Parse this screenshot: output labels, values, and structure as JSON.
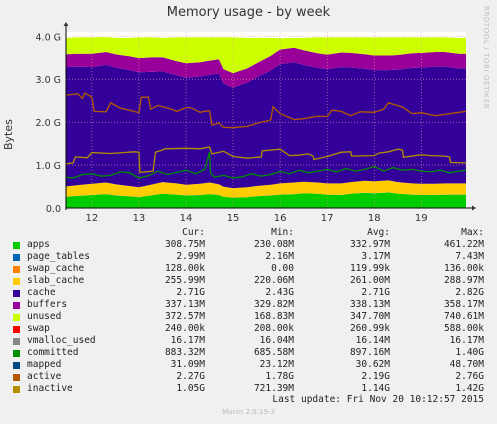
{
  "chart_data": {
    "type": "area",
    "title": "Memory usage - by week",
    "ylabel": "Bytes",
    "vendor": "RRDTOOL / TOBI OETIKER",
    "x_ticks": [
      "12",
      "13",
      "14",
      "15",
      "16",
      "17",
      "18",
      "19"
    ],
    "y_ticks": [
      "0.0",
      "1.0 G",
      "2.0 G",
      "3.0 G",
      "4.0 G"
    ],
    "ylim": [
      0,
      4.1
    ],
    "x_range": [
      11.45,
      19.95
    ],
    "grid": true,
    "colors": {
      "apps": "#00cc00",
      "page_tables": "#0066b3",
      "swap_cache": "#ff8000",
      "slab_cache": "#ffcc00",
      "cache": "#330099",
      "buffers": "#990099",
      "unused": "#ccff00",
      "swap": "#ff0000",
      "vmalloc_used": "#888888",
      "committed": "#008f00",
      "mapped": "#00487d",
      "active": "#b35a00",
      "inactive": "#b38f00"
    },
    "stack_x": [
      11.45,
      11.7,
      12.0,
      12.3,
      12.5,
      12.8,
      13.0,
      13.3,
      13.5,
      13.8,
      14.0,
      14.3,
      14.5,
      14.7,
      14.8,
      15.0,
      15.3,
      15.5,
      15.8,
      16.0,
      16.3,
      16.5,
      16.8,
      17.0,
      17.3,
      17.5,
      17.8,
      18.0,
      18.3,
      18.5,
      18.8,
      19.0,
      19.3,
      19.5,
      19.8,
      19.95
    ],
    "stack_series": [
      {
        "key": "apps",
        "values": [
          0.26,
          0.28,
          0.3,
          0.32,
          0.29,
          0.27,
          0.25,
          0.3,
          0.33,
          0.31,
          0.29,
          0.3,
          0.32,
          0.3,
          0.26,
          0.24,
          0.25,
          0.27,
          0.29,
          0.31,
          0.32,
          0.34,
          0.33,
          0.31,
          0.3,
          0.33,
          0.35,
          0.34,
          0.36,
          0.33,
          0.31,
          0.3,
          0.3,
          0.31,
          0.31,
          0.31
        ]
      },
      {
        "key": "page_tables",
        "values": [
          0.003,
          0.003,
          0.003,
          0.003,
          0.003,
          0.003,
          0.003,
          0.003,
          0.003,
          0.003,
          0.003,
          0.003,
          0.003,
          0.003,
          0.003,
          0.003,
          0.003,
          0.003,
          0.003,
          0.003,
          0.003,
          0.003,
          0.003,
          0.003,
          0.003,
          0.003,
          0.003,
          0.003,
          0.003,
          0.003,
          0.003,
          0.003,
          0.003,
          0.003,
          0.003,
          0.003
        ]
      },
      {
        "key": "swap_cache",
        "values": [
          0.0001,
          0.0001,
          0.0001,
          0.0001,
          0.0001,
          0.0001,
          0.0001,
          0.0001,
          0.0001,
          0.0001,
          0.0001,
          0.0001,
          0.0001,
          0.0001,
          0.0001,
          0.0001,
          0.0001,
          0.0001,
          0.0001,
          0.0001,
          0.0001,
          0.0001,
          0.0001,
          0.0001,
          0.0001,
          0.0001,
          0.0001,
          0.0001,
          0.0001,
          0.0001,
          0.0001,
          0.0001,
          0.0001,
          0.0001,
          0.0001,
          0.0001
        ]
      },
      {
        "key": "slab_cache",
        "values": [
          0.24,
          0.25,
          0.26,
          0.27,
          0.26,
          0.24,
          0.23,
          0.25,
          0.27,
          0.26,
          0.25,
          0.26,
          0.27,
          0.25,
          0.23,
          0.22,
          0.23,
          0.24,
          0.25,
          0.26,
          0.27,
          0.27,
          0.26,
          0.26,
          0.27,
          0.27,
          0.28,
          0.28,
          0.28,
          0.27,
          0.26,
          0.26,
          0.26,
          0.26,
          0.26,
          0.26
        ]
      },
      {
        "key": "cache",
        "values": [
          2.78,
          2.76,
          2.72,
          2.74,
          2.72,
          2.7,
          2.68,
          2.62,
          2.58,
          2.52,
          2.49,
          2.5,
          2.51,
          2.58,
          2.4,
          2.34,
          2.44,
          2.53,
          2.66,
          2.78,
          2.8,
          2.72,
          2.67,
          2.66,
          2.71,
          2.67,
          2.61,
          2.59,
          2.57,
          2.62,
          2.69,
          2.71,
          2.73,
          2.72,
          2.68,
          2.68
        ]
      },
      {
        "key": "buffers",
        "values": [
          0.3,
          0.3,
          0.31,
          0.3,
          0.31,
          0.32,
          0.33,
          0.34,
          0.33,
          0.33,
          0.34,
          0.33,
          0.33,
          0.33,
          0.34,
          0.34,
          0.33,
          0.33,
          0.34,
          0.34,
          0.34,
          0.34,
          0.34,
          0.34,
          0.34,
          0.34,
          0.34,
          0.34,
          0.34,
          0.34,
          0.34,
          0.34,
          0.34,
          0.34,
          0.34,
          0.34
        ]
      },
      {
        "key": "unused",
        "values": [
          0.38,
          0.38,
          0.38,
          0.35,
          0.38,
          0.43,
          0.48,
          0.46,
          0.45,
          0.55,
          0.6,
          0.58,
          0.54,
          0.51,
          0.74,
          0.83,
          0.71,
          0.59,
          0.42,
          0.26,
          0.23,
          0.29,
          0.37,
          0.4,
          0.35,
          0.36,
          0.39,
          0.42,
          0.42,
          0.41,
          0.37,
          0.36,
          0.34,
          0.34,
          0.37,
          0.37
        ]
      },
      {
        "key": "swap",
        "values": [
          0.0002,
          0.0002,
          0.0002,
          0.0002,
          0.0002,
          0.0002,
          0.0002,
          0.0002,
          0.0002,
          0.0002,
          0.0002,
          0.0002,
          0.0002,
          0.0002,
          0.0002,
          0.0002,
          0.0002,
          0.0002,
          0.0002,
          0.0002,
          0.0002,
          0.0002,
          0.0002,
          0.0002,
          0.0002,
          0.0002,
          0.0002,
          0.0002,
          0.0002,
          0.0002,
          0.0002,
          0.0002,
          0.0002,
          0.0002,
          0.0002,
          0.0002
        ]
      }
    ],
    "line_series": [
      {
        "key": "committed",
        "x": [
          11.45,
          11.6,
          11.8,
          12.0,
          12.2,
          12.4,
          12.6,
          12.8,
          13.0,
          13.2,
          13.4,
          13.6,
          13.8,
          14.0,
          14.2,
          14.4,
          14.5,
          14.52,
          14.6,
          14.8,
          15.0,
          15.2,
          15.4,
          15.6,
          15.8,
          16.0,
          16.2,
          16.4,
          16.6,
          16.8,
          17.0,
          17.2,
          17.4,
          17.6,
          17.8,
          18.0,
          18.2,
          18.4,
          18.6,
          18.8,
          19.0,
          19.2,
          19.4,
          19.6,
          19.8,
          19.95
        ],
        "values": [
          0.72,
          0.7,
          0.78,
          0.8,
          0.74,
          0.76,
          0.84,
          0.82,
          0.7,
          0.75,
          0.86,
          0.78,
          0.83,
          0.88,
          0.8,
          0.9,
          1.3,
          0.82,
          0.72,
          0.76,
          0.7,
          0.73,
          0.8,
          0.74,
          0.78,
          0.85,
          0.8,
          0.88,
          0.82,
          0.86,
          0.9,
          0.84,
          0.92,
          0.86,
          0.9,
          0.97,
          0.86,
          0.94,
          0.88,
          0.9,
          0.86,
          0.84,
          0.88,
          0.82,
          0.86,
          0.88
        ]
      },
      {
        "key": "active",
        "x": [
          11.45,
          11.7,
          11.8,
          11.85,
          12.0,
          12.05,
          12.3,
          12.4,
          12.6,
          12.9,
          13.0,
          13.05,
          13.2,
          13.25,
          13.4,
          13.7,
          13.8,
          14.0,
          14.1,
          14.3,
          14.4,
          14.5,
          14.55,
          14.7,
          14.8,
          15.0,
          15.3,
          15.5,
          15.8,
          15.85,
          16.0,
          16.3,
          16.5,
          16.8,
          17.0,
          17.1,
          17.3,
          17.5,
          17.7,
          18.0,
          18.2,
          18.3,
          18.6,
          18.8,
          19.0,
          19.3,
          19.5,
          19.8,
          19.95
        ],
        "values": [
          2.63,
          2.66,
          2.55,
          2.68,
          2.58,
          2.25,
          2.24,
          2.45,
          2.33,
          2.25,
          2.22,
          2.58,
          2.58,
          2.3,
          2.39,
          2.3,
          2.25,
          2.34,
          2.34,
          2.23,
          2.25,
          2.27,
          1.93,
          1.98,
          1.88,
          1.87,
          1.9,
          1.97,
          2.05,
          2.36,
          2.2,
          2.06,
          2.08,
          2.14,
          2.13,
          2.28,
          2.25,
          2.15,
          2.24,
          2.23,
          2.3,
          2.45,
          2.35,
          2.2,
          2.22,
          2.15,
          2.18,
          2.23,
          2.25
        ]
      },
      {
        "key": "inactive",
        "x": [
          11.45,
          11.6,
          11.65,
          11.9,
          12.0,
          12.4,
          12.9,
          13.0,
          13.02,
          13.3,
          13.35,
          13.5,
          13.55,
          14.0,
          14.3,
          14.5,
          14.55,
          14.8,
          15.0,
          15.3,
          15.6,
          15.62,
          16.0,
          16.2,
          16.4,
          16.6,
          16.7,
          16.72,
          17.0,
          17.3,
          17.5,
          17.52,
          18.0,
          18.1,
          18.3,
          18.5,
          18.6,
          18.62,
          19.0,
          19.2,
          19.5,
          19.6,
          19.62,
          19.9,
          19.95
        ],
        "values": [
          1.03,
          1.05,
          1.19,
          1.17,
          1.29,
          1.27,
          1.31,
          1.3,
          0.83,
          0.86,
          1.3,
          1.35,
          1.38,
          1.39,
          1.38,
          1.42,
          1.26,
          1.32,
          1.2,
          1.16,
          1.19,
          1.33,
          1.37,
          1.22,
          1.23,
          1.26,
          1.21,
          1.13,
          1.2,
          1.3,
          1.31,
          1.21,
          1.22,
          1.28,
          1.31,
          1.37,
          1.35,
          1.18,
          1.24,
          1.22,
          1.21,
          1.19,
          1.06,
          1.05,
          1.05
        ]
      }
    ],
    "legend_headers": {
      "cur": "Cur:",
      "min": "Min:",
      "avg": "Avg:",
      "max": "Max:"
    },
    "legend": [
      {
        "key": "apps",
        "name": "apps",
        "cur": "308.75M",
        "min": "230.08M",
        "avg": "332.97M",
        "max": "461.22M"
      },
      {
        "key": "page_tables",
        "name": "page_tables",
        "cur": "2.99M",
        "min": "2.16M",
        "avg": "3.17M",
        "max": "7.43M"
      },
      {
        "key": "swap_cache",
        "name": "swap_cache",
        "cur": "128.00k",
        "min": "0.00",
        "avg": "119.99k",
        "max": "136.00k"
      },
      {
        "key": "slab_cache",
        "name": "slab_cache",
        "cur": "255.99M",
        "min": "220.06M",
        "avg": "261.00M",
        "max": "288.97M"
      },
      {
        "key": "cache",
        "name": "cache",
        "cur": "2.71G",
        "min": "2.43G",
        "avg": "2.71G",
        "max": "2.82G"
      },
      {
        "key": "buffers",
        "name": "buffers",
        "cur": "337.13M",
        "min": "329.82M",
        "avg": "338.13M",
        "max": "358.17M"
      },
      {
        "key": "unused",
        "name": "unused",
        "cur": "372.57M",
        "min": "168.83M",
        "avg": "347.70M",
        "max": "740.61M"
      },
      {
        "key": "swap",
        "name": "swap",
        "cur": "240.00k",
        "min": "208.00k",
        "avg": "260.99k",
        "max": "588.00k"
      },
      {
        "key": "vmalloc_used",
        "name": "vmalloc_used",
        "cur": "16.17M",
        "min": "16.04M",
        "avg": "16.14M",
        "max": "16.17M"
      },
      {
        "key": "committed",
        "name": "committed",
        "cur": "883.32M",
        "min": "685.58M",
        "avg": "897.16M",
        "max": "1.40G"
      },
      {
        "key": "mapped",
        "name": "mapped",
        "cur": "31.09M",
        "min": "23.12M",
        "avg": "30.62M",
        "max": "48.70M"
      },
      {
        "key": "active",
        "name": "active",
        "cur": "2.27G",
        "min": "1.78G",
        "avg": "2.19G",
        "max": "2.76G"
      },
      {
        "key": "inactive",
        "name": "inactive",
        "cur": "1.05G",
        "min": "721.39M",
        "avg": "1.14G",
        "max": "1.42G"
      }
    ],
    "last_update": "Last update: Fri Nov 20 10:12:57 2015",
    "version": "Munin 2.0.19-3"
  }
}
